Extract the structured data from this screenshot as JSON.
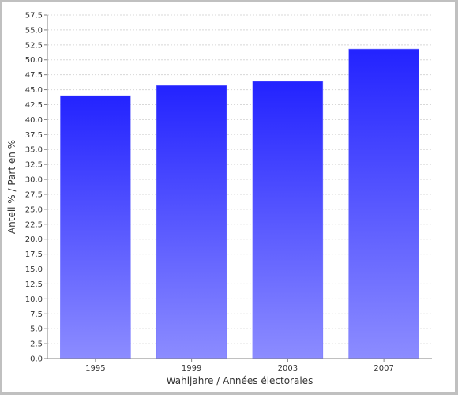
{
  "chart_data": {
    "type": "bar",
    "categories": [
      "1995",
      "1999",
      "2003",
      "2007"
    ],
    "values": [
      44.0,
      45.7,
      46.4,
      51.8
    ],
    "xlabel": "Wahljahre / Années électorales",
    "ylabel": "Anteil % / Part en %",
    "ylim": [
      0,
      57.5
    ],
    "yticks": [
      "0.0",
      "2.5",
      "5.0",
      "7.5",
      "10.0",
      "12.5",
      "15.0",
      "17.5",
      "20.0",
      "22.5",
      "25.0",
      "27.5",
      "30.0",
      "32.5",
      "35.0",
      "37.5",
      "40.0",
      "42.5",
      "45.0",
      "47.5",
      "50.0",
      "52.5",
      "55.0",
      "57.5"
    ],
    "grid": true,
    "colors": {
      "bar_top": "#2323ff",
      "bar_bottom": "#8c8cff",
      "grid": "#d8d8d8",
      "axis": "#808080",
      "page_bg": "#c0c0c0",
      "plot_bg": "#ffffff"
    }
  }
}
